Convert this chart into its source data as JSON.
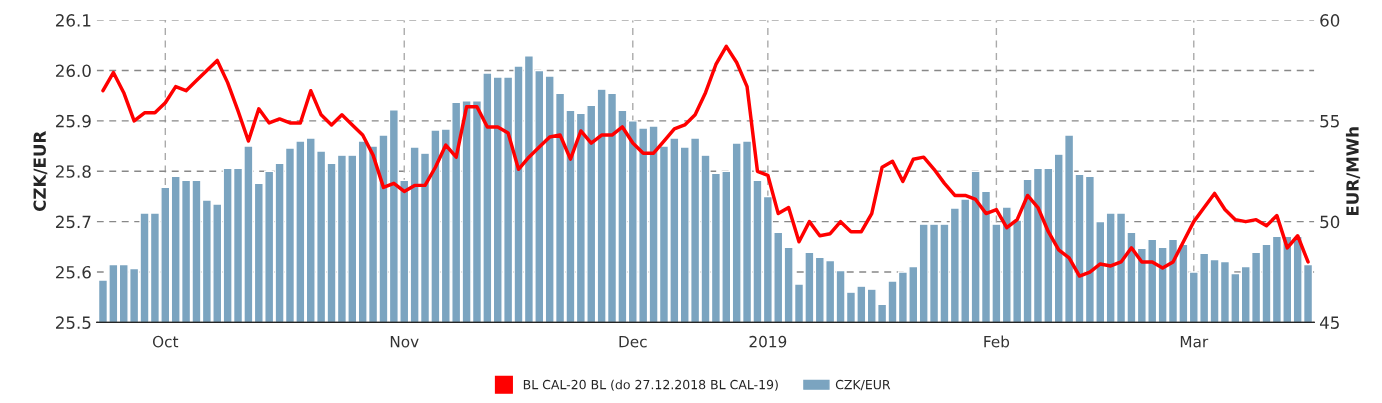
{
  "chart_data": {
    "type": "bar",
    "ylabel": "CZK/EUR",
    "y2label": "EUR/MWh",
    "categories": [
      null,
      null,
      null,
      null,
      null,
      null,
      "Oct",
      null,
      null,
      null,
      null,
      null,
      null,
      null,
      null,
      null,
      null,
      null,
      null,
      null,
      null,
      null,
      null,
      null,
      null,
      null,
      null,
      null,
      null,
      "Nov",
      null,
      null,
      null,
      null,
      null,
      null,
      null,
      null,
      null,
      null,
      null,
      null,
      null,
      null,
      null,
      null,
      null,
      null,
      null,
      null,
      null,
      "Dec",
      null,
      null,
      null,
      null,
      null,
      null,
      null,
      null,
      null,
      null,
      null,
      null,
      "2019",
      null,
      null,
      null,
      null,
      null,
      null,
      null,
      null,
      null,
      null,
      null,
      null,
      null,
      null,
      null,
      null,
      null,
      null,
      null,
      null,
      null,
      "Feb",
      null,
      null,
      null,
      null,
      null,
      null,
      null,
      null,
      null,
      null,
      null,
      null,
      null,
      null,
      null,
      null,
      null,
      null,
      "Mar",
      null,
      null,
      null,
      null,
      null,
      null,
      null,
      null,
      null,
      null,
      null
    ],
    "series": [
      {
        "name": "BL CAL-20 BL (do 27.12.2018 BL CAL-19)",
        "type": "line",
        "axis": "y2",
        "color": "#ff0000",
        "values": [
          56.5,
          57.4,
          56.4,
          55.0,
          55.4,
          55.4,
          55.9,
          56.7,
          56.5,
          57.0,
          57.5,
          58.0,
          56.9,
          55.5,
          54.0,
          55.6,
          54.9,
          55.1,
          54.9,
          54.9,
          56.5,
          55.3,
          54.8,
          55.3,
          54.8,
          54.3,
          53.3,
          51.7,
          51.9,
          51.5,
          51.8,
          51.8,
          52.7,
          53.8,
          53.2,
          55.7,
          55.7,
          54.7,
          54.7,
          54.4,
          52.6,
          53.2,
          53.7,
          54.2,
          54.3,
          53.1,
          54.5,
          53.9,
          54.3,
          54.3,
          54.7,
          53.9,
          53.4,
          53.4,
          54.0,
          54.6,
          54.8,
          55.3,
          56.4,
          57.8,
          58.7,
          57.9,
          56.7,
          52.5,
          52.3,
          50.4,
          50.7,
          49.0,
          50.0,
          49.3,
          49.4,
          50.0,
          49.5,
          49.5,
          50.4,
          52.7,
          53.0,
          52.0,
          53.1,
          53.2,
          52.6,
          51.9,
          51.3,
          51.3,
          51.1,
          50.4,
          50.6,
          49.7,
          50.1,
          51.3,
          50.7,
          49.5,
          48.6,
          48.2,
          47.3,
          47.5,
          47.9,
          47.8,
          48.0,
          48.7,
          48.0,
          48.0,
          47.7,
          48.0,
          49.0,
          50.0,
          50.7,
          51.4,
          50.6,
          50.1,
          50.0,
          50.1,
          49.8,
          50.3,
          48.7,
          49.3,
          48.0
        ]
      },
      {
        "name": "CZK/EUR",
        "axis": "y",
        "color": "#7ba4c0",
        "values": [
          25.584,
          25.615,
          25.615,
          25.607,
          25.717,
          25.717,
          25.768,
          25.79,
          25.782,
          25.782,
          25.743,
          25.735,
          25.806,
          25.806,
          25.85,
          25.776,
          25.8,
          25.816,
          25.846,
          25.86,
          25.866,
          25.84,
          25.816,
          25.832,
          25.832,
          25.86,
          25.85,
          25.872,
          25.922,
          25.782,
          25.848,
          25.836,
          25.882,
          25.884,
          25.937,
          25.94,
          25.94,
          25.995,
          25.987,
          25.987,
          26.009,
          26.029,
          26.0,
          25.989,
          25.955,
          25.921,
          25.915,
          25.931,
          25.963,
          25.955,
          25.921,
          25.9,
          25.886,
          25.89,
          25.85,
          25.866,
          25.848,
          25.866,
          25.832,
          25.796,
          25.8,
          25.856,
          25.86,
          25.782,
          25.75,
          25.679,
          25.649,
          25.576,
          25.639,
          25.629,
          25.623,
          25.603,
          25.56,
          25.572,
          25.566,
          25.536,
          25.582,
          25.6,
          25.611,
          25.695,
          25.695,
          25.695,
          25.727,
          25.745,
          25.8,
          25.76,
          25.695,
          25.729,
          25.703,
          25.784,
          25.806,
          25.806,
          25.834,
          25.872,
          25.794,
          25.79,
          25.7,
          25.717,
          25.717,
          25.679,
          25.647,
          25.665,
          25.649,
          25.665,
          25.655,
          25.6,
          25.637,
          25.625,
          25.621,
          25.597,
          25.611,
          25.639,
          25.655,
          25.671,
          25.671,
          25.671,
          25.615
        ]
      }
    ],
    "ylim": [
      25.5,
      26.1
    ],
    "yticks": [
      25.5,
      25.6,
      25.7,
      25.8,
      25.9,
      {
        "value": 26.0,
        "label": "26.0"
      },
      26.1
    ],
    "y2lim": [
      45,
      60
    ],
    "y2ticks": [
      45,
      50,
      55,
      60
    ],
    "grid": true,
    "legend": "bottom"
  }
}
